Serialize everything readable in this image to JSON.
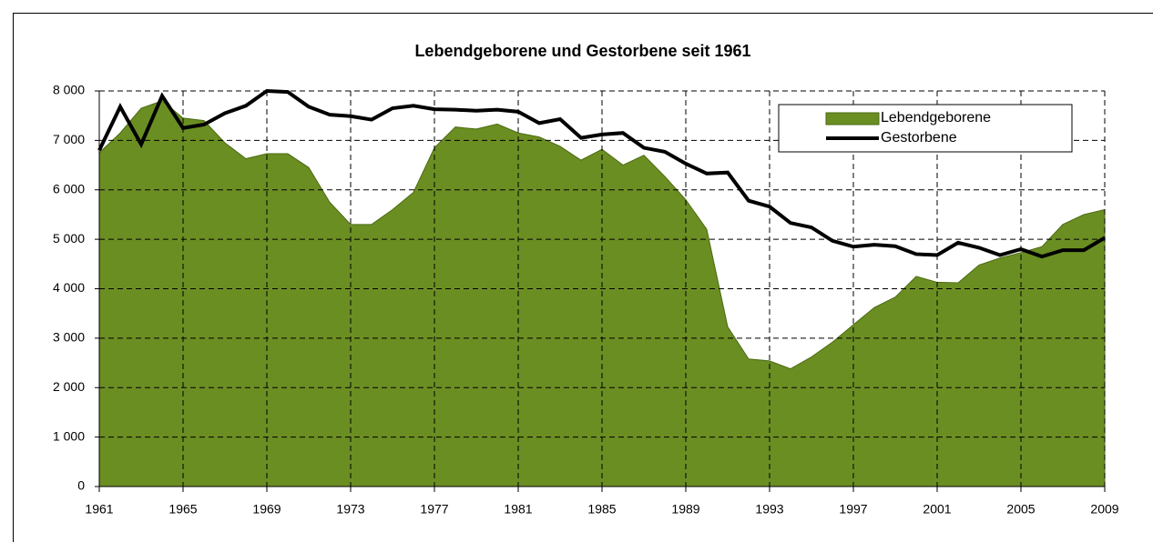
{
  "chart_data": {
    "type": "area",
    "title": "Lebendgeborene und Gestorbene seit 1961",
    "x": [
      1961,
      1962,
      1963,
      1964,
      1965,
      1966,
      1967,
      1968,
      1969,
      1970,
      1971,
      1972,
      1973,
      1974,
      1975,
      1976,
      1977,
      1978,
      1979,
      1980,
      1981,
      1982,
      1983,
      1984,
      1985,
      1986,
      1987,
      1988,
      1989,
      1990,
      1991,
      1992,
      1993,
      1994,
      1995,
      1996,
      1997,
      1998,
      1999,
      2000,
      2001,
      2002,
      2003,
      2004,
      2005,
      2006,
      2007,
      2008,
      2009
    ],
    "series": [
      {
        "name": "Lebendgeborene",
        "type": "area",
        "color": "#6b8e23",
        "values": [
          6750,
          7150,
          7650,
          7800,
          7450,
          7400,
          6950,
          6630,
          6730,
          6730,
          6450,
          5750,
          5300,
          5300,
          5600,
          5950,
          6850,
          7270,
          7230,
          7330,
          7150,
          7070,
          6880,
          6600,
          6820,
          6500,
          6700,
          6270,
          5800,
          5200,
          3230,
          2580,
          2540,
          2380,
          2620,
          2920,
          3270,
          3620,
          3830,
          4250,
          4130,
          4120,
          4480,
          4620,
          4730,
          4850,
          5300,
          5500,
          5600
        ]
      },
      {
        "name": "Gestorbene",
        "type": "line",
        "color": "#000000",
        "values": [
          6800,
          7680,
          6920,
          7900,
          7250,
          7320,
          7550,
          7700,
          8000,
          7980,
          7680,
          7520,
          7490,
          7420,
          7650,
          7700,
          7630,
          7620,
          7600,
          7620,
          7580,
          7350,
          7430,
          7050,
          7120,
          7150,
          6850,
          6770,
          6530,
          6330,
          6350,
          5780,
          5660,
          5330,
          5240,
          4970,
          4850,
          4890,
          4860,
          4700,
          4680,
          4930,
          4830,
          4680,
          4800,
          4650,
          4780,
          4780,
          5030
        ]
      }
    ],
    "xlim": [
      1961,
      2009
    ],
    "xticks": [
      1961,
      1965,
      1969,
      1973,
      1977,
      1981,
      1985,
      1989,
      1993,
      1997,
      2001,
      2005,
      2009
    ],
    "ylim": [
      0,
      8000
    ],
    "yticks": [
      0,
      {
        "value": 1000,
        "label": "1 000"
      },
      {
        "value": 2000,
        "label": "2 000"
      },
      {
        "value": 3000,
        "label": "3 000"
      },
      {
        "value": 4000,
        "label": "4 000"
      },
      {
        "value": 5000,
        "label": "5 000"
      },
      {
        "value": 6000,
        "label": "6 000"
      },
      {
        "value": 7000,
        "label": "7 000"
      },
      {
        "value": 8000,
        "label": "8 000"
      }
    ],
    "grid": true,
    "legend": "top-right"
  }
}
